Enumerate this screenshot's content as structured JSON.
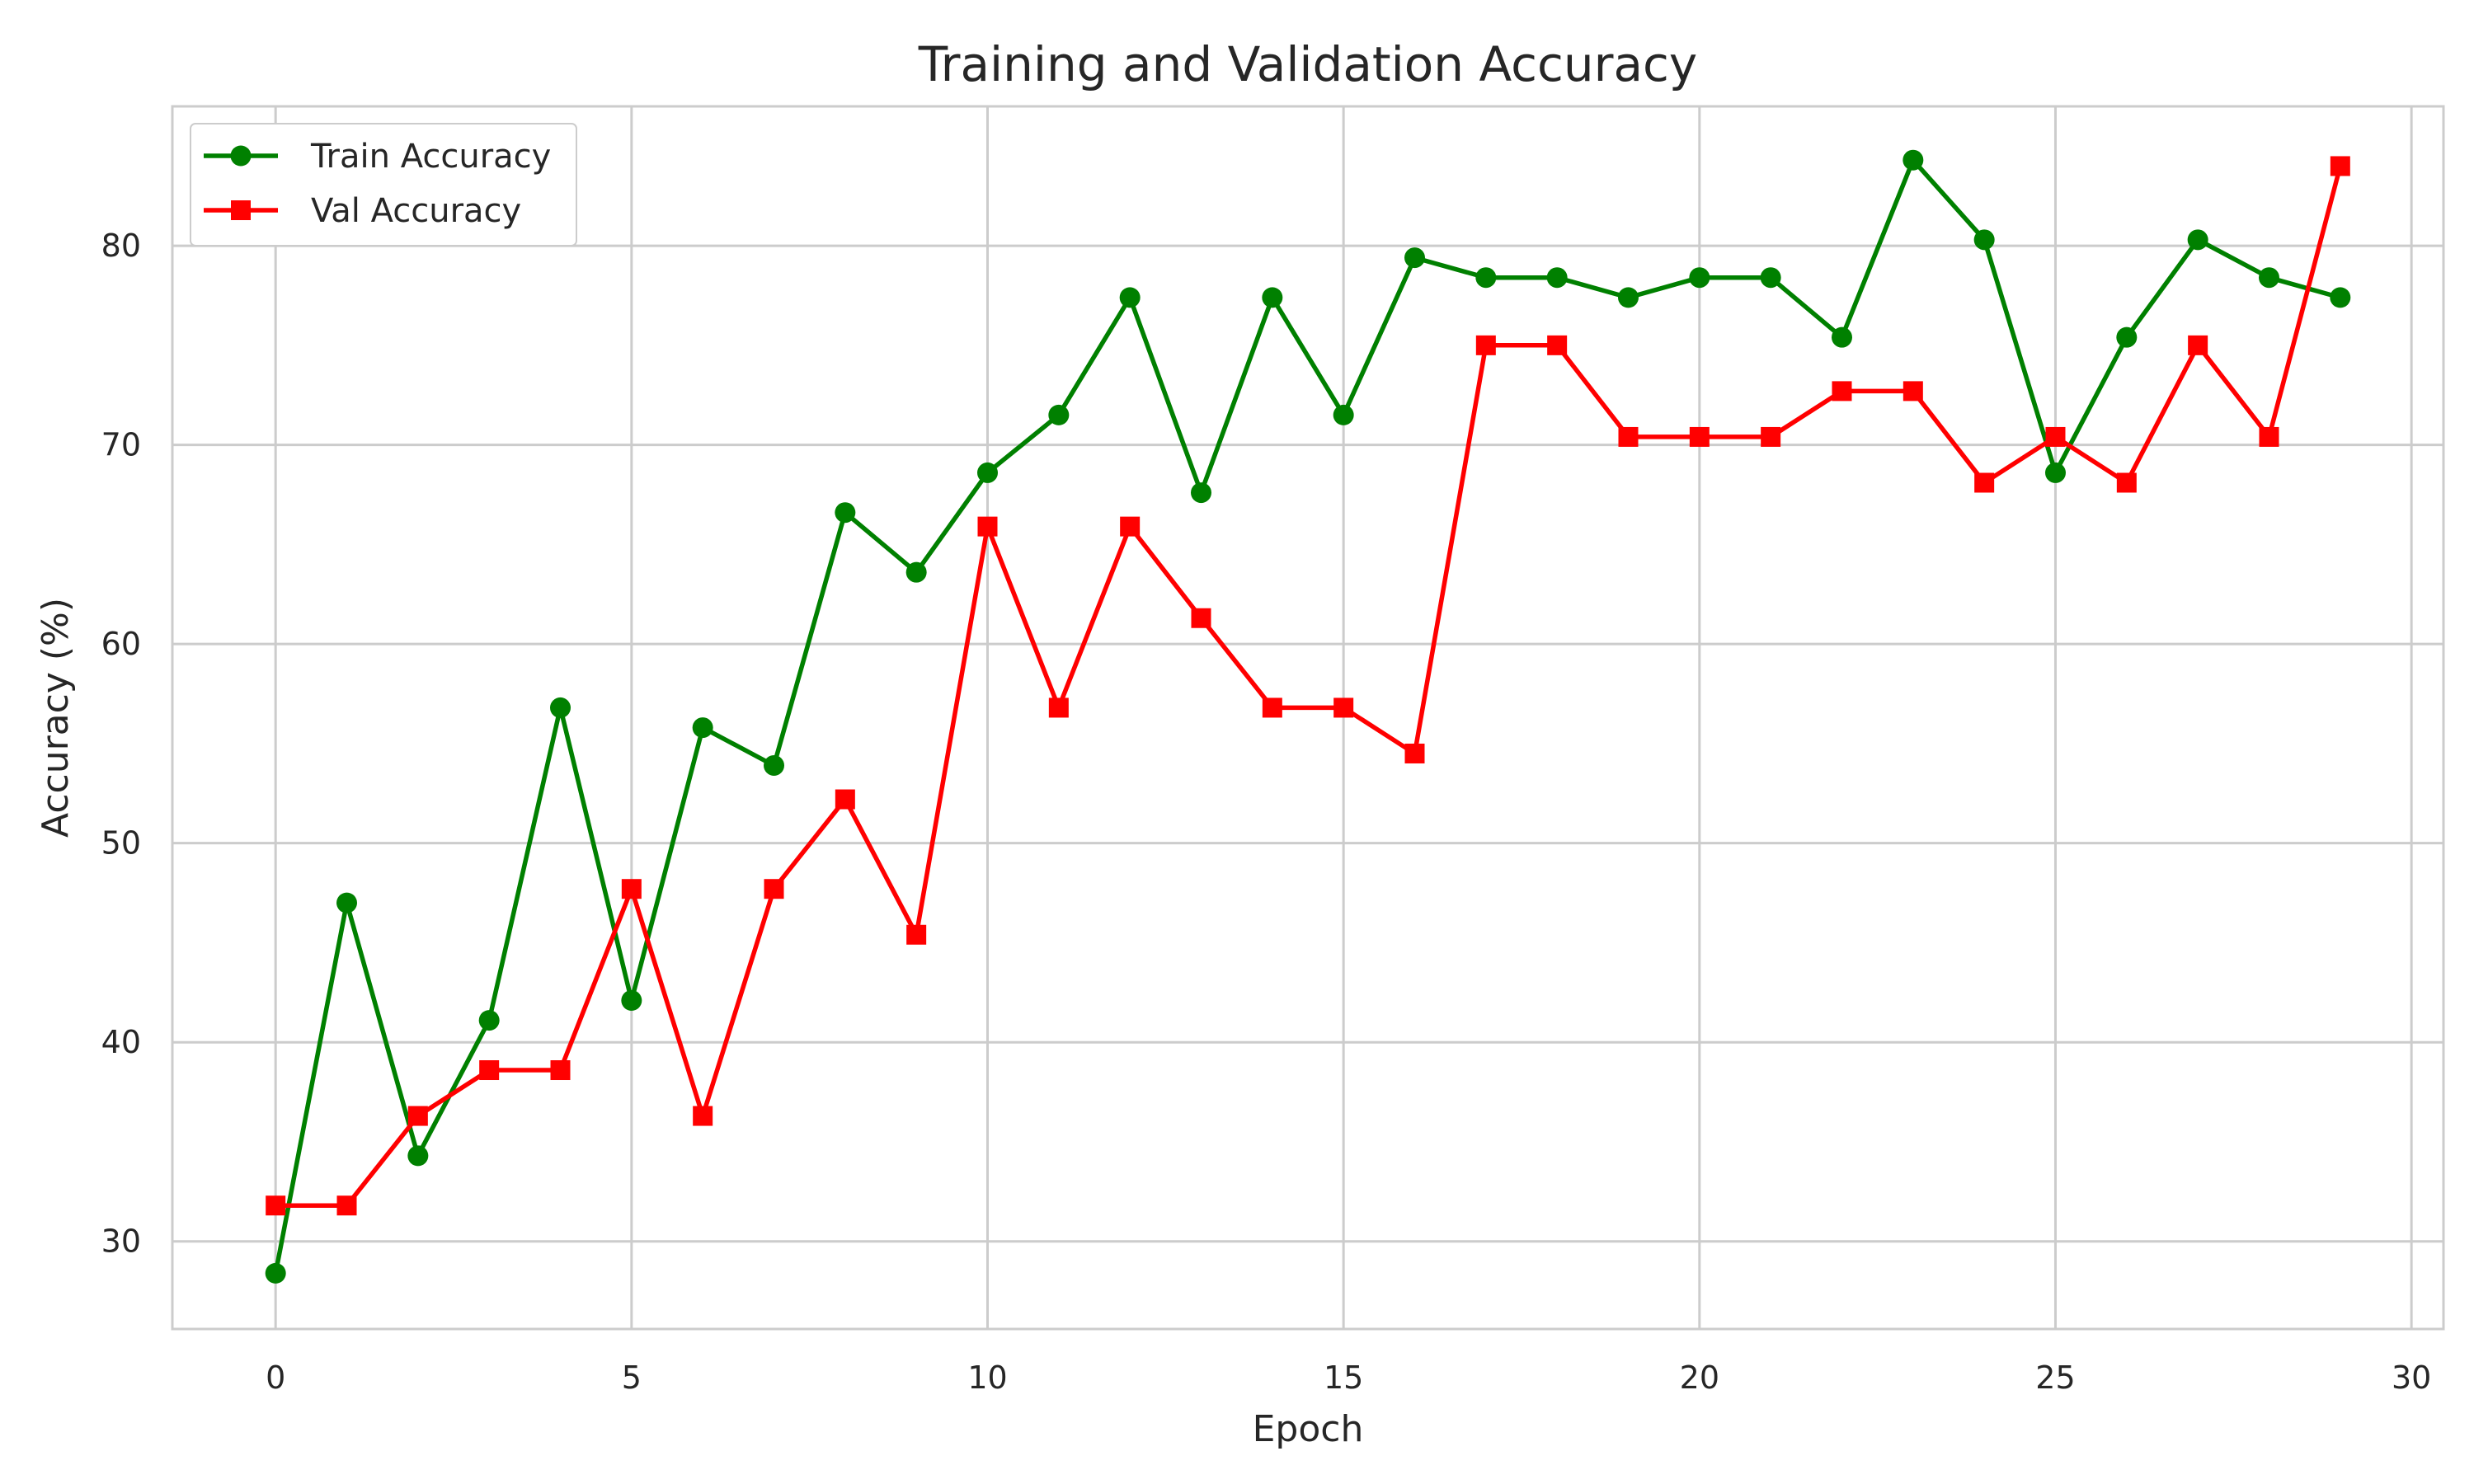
{
  "chart_data": {
    "type": "line",
    "title": "Training and Validation Accuracy",
    "xlabel": "Epoch",
    "ylabel": "Accuracy (%)",
    "xlim": [
      -1.45,
      30.45
    ],
    "ylim": [
      25.6,
      87.0
    ],
    "xticks": [
      0,
      5,
      10,
      15,
      20,
      25,
      30
    ],
    "yticks": [
      30,
      40,
      50,
      60,
      70,
      80
    ],
    "grid": true,
    "legend_position": "top-left",
    "x": [
      0,
      1,
      2,
      3,
      4,
      5,
      6,
      7,
      8,
      9,
      10,
      11,
      12,
      13,
      14,
      15,
      16,
      17,
      18,
      19,
      20,
      21,
      22,
      23,
      24,
      25,
      26,
      27,
      28,
      29
    ],
    "series": [
      {
        "name": "Train Accuracy",
        "color": "#008000",
        "marker": "circle",
        "values": [
          28.4,
          47.0,
          34.3,
          41.1,
          56.8,
          42.1,
          55.8,
          53.9,
          66.6,
          63.6,
          68.6,
          71.5,
          77.4,
          67.6,
          77.4,
          71.5,
          79.4,
          78.4,
          78.4,
          77.4,
          78.4,
          78.4,
          75.4,
          84.3,
          80.3,
          68.6,
          75.4,
          80.3,
          78.4,
          77.4
        ]
      },
      {
        "name": "Val Accuracy",
        "color": "#ff0000",
        "marker": "square",
        "values": [
          31.8,
          31.8,
          36.3,
          38.6,
          38.6,
          47.7,
          36.3,
          47.7,
          52.2,
          45.4,
          65.9,
          56.8,
          65.9,
          61.3,
          56.8,
          56.8,
          54.5,
          75.0,
          75.0,
          70.4,
          70.4,
          70.4,
          72.7,
          72.7,
          68.1,
          70.4,
          68.1,
          75.0,
          70.4,
          84.0
        ]
      }
    ]
  }
}
